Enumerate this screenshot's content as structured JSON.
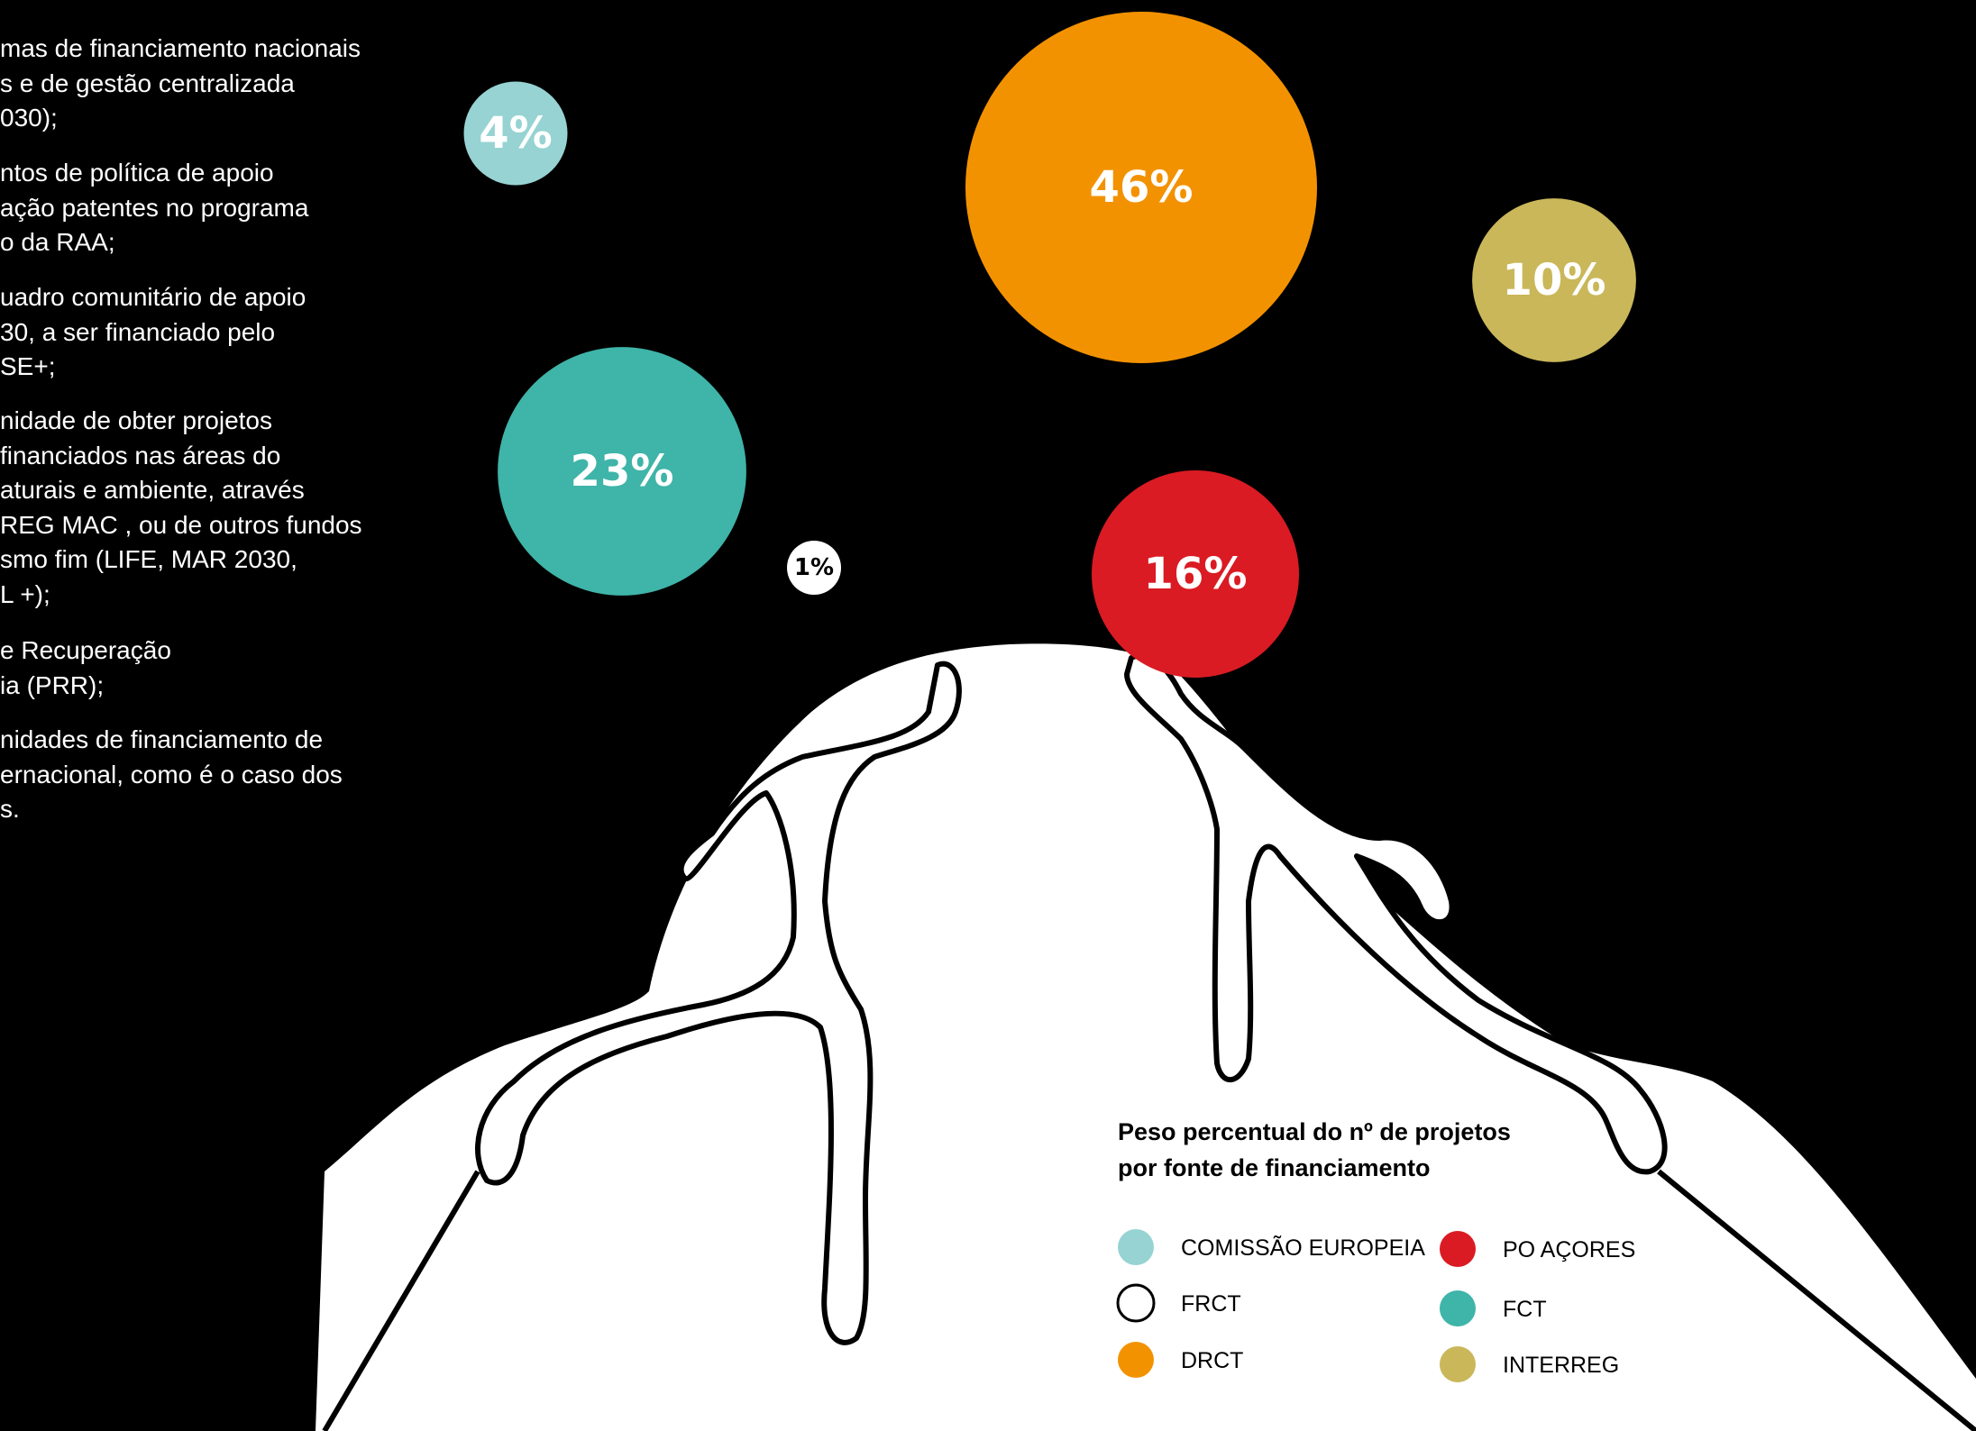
{
  "text_fragments": [
    [
      "mas de financiamento nacionais",
      "s e de gestão centralizada",
      "030);"
    ],
    [
      "ntos de política de apoio",
      "ação patentes no programa",
      "o da RAA;"
    ],
    [
      "uadro comunitário de apoio",
      "30, a ser financiado pelo",
      "SE+;"
    ],
    [
      "nidade de obter projetos",
      "financiados nas áreas do",
      "aturais e ambiente, através",
      "REG MAC , ou de outros fundos",
      "smo fim (LIFE, MAR 2030,",
      "L +);"
    ],
    [
      "e Recuperação",
      "ia (PRR);"
    ],
    [
      "nidades de financiamento de",
      "ernacional, como é o caso dos",
      "s."
    ]
  ],
  "chart_data": {
    "type": "bubble",
    "title": "Peso percentual do nº de projetos\npor fonte de financiamento",
    "unit": "%",
    "series": [
      {
        "name": "COMISSÃO EUROPEIA",
        "value": 4,
        "label": "4%",
        "color": "#97d3d3"
      },
      {
        "name": "FRCT",
        "value": 1,
        "label": "1%",
        "color": "#ffffff"
      },
      {
        "name": "DRCT",
        "value": 46,
        "label": "46%",
        "color": "#f39200"
      },
      {
        "name": "PO AÇORES",
        "value": 16,
        "label": "16%",
        "color": "#da1b23"
      },
      {
        "name": "FCT",
        "value": 23,
        "label": "23%",
        "color": "#3fb4a8"
      },
      {
        "name": "INTERREG",
        "value": 10,
        "label": "10%",
        "color": "#c9b75a"
      }
    ],
    "legend_position": "bottom-right"
  }
}
